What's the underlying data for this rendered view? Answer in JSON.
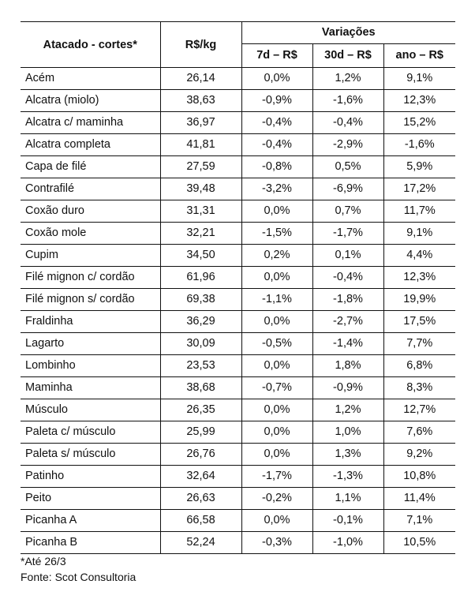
{
  "table": {
    "headers": {
      "name": "Atacado - cortes*",
      "price": "R$/kg",
      "group": "Variações",
      "d7": "7d – R$",
      "d30": "30d – R$",
      "ano": "ano – R$"
    },
    "rows": [
      {
        "name": "Acém",
        "price": "26,14",
        "d7": "0,0%",
        "d30": "1,2%",
        "ano": "9,1%"
      },
      {
        "name": "Alcatra (miolo)",
        "price": "38,63",
        "d7": "-0,9%",
        "d30": "-1,6%",
        "ano": "12,3%"
      },
      {
        "name": "Alcatra c/ maminha",
        "price": "36,97",
        "d7": "-0,4%",
        "d30": "-0,4%",
        "ano": "15,2%"
      },
      {
        "name": "Alcatra completa",
        "price": "41,81",
        "d7": "-0,4%",
        "d30": "-2,9%",
        "ano": "-1,6%"
      },
      {
        "name": "Capa de filé",
        "price": "27,59",
        "d7": "-0,8%",
        "d30": "0,5%",
        "ano": "5,9%"
      },
      {
        "name": "Contrafilé",
        "price": "39,48",
        "d7": "-3,2%",
        "d30": "-6,9%",
        "ano": "17,2%"
      },
      {
        "name": "Coxão duro",
        "price": "31,31",
        "d7": "0,0%",
        "d30": "0,7%",
        "ano": "11,7%"
      },
      {
        "name": "Coxão mole",
        "price": "32,21",
        "d7": "-1,5%",
        "d30": "-1,7%",
        "ano": "9,1%"
      },
      {
        "name": "Cupim",
        "price": "34,50",
        "d7": "0,2%",
        "d30": "0,1%",
        "ano": "4,4%"
      },
      {
        "name": "Filé mignon c/ cordão",
        "price": "61,96",
        "d7": "0,0%",
        "d30": "-0,4%",
        "ano": "12,3%"
      },
      {
        "name": "Filé mignon s/ cordão",
        "price": "69,38",
        "d7": "-1,1%",
        "d30": "-1,8%",
        "ano": "19,9%"
      },
      {
        "name": "Fraldinha",
        "price": "36,29",
        "d7": "0,0%",
        "d30": "-2,7%",
        "ano": "17,5%"
      },
      {
        "name": "Lagarto",
        "price": "30,09",
        "d7": "-0,5%",
        "d30": "-1,4%",
        "ano": "7,7%"
      },
      {
        "name": "Lombinho",
        "price": "23,53",
        "d7": "0,0%",
        "d30": "1,8%",
        "ano": "6,8%"
      },
      {
        "name": "Maminha",
        "price": "38,68",
        "d7": "-0,7%",
        "d30": "-0,9%",
        "ano": "8,3%"
      },
      {
        "name": "Músculo",
        "price": "26,35",
        "d7": "0,0%",
        "d30": "1,2%",
        "ano": "12,7%"
      },
      {
        "name": "Paleta c/ músculo",
        "price": "25,99",
        "d7": "0,0%",
        "d30": "1,0%",
        "ano": "7,6%"
      },
      {
        "name": "Paleta s/ músculo",
        "price": "26,76",
        "d7": "0,0%",
        "d30": "1,3%",
        "ano": "9,2%"
      },
      {
        "name": "Patinho",
        "price": "32,64",
        "d7": "-1,7%",
        "d30": "-1,3%",
        "ano": "10,8%"
      },
      {
        "name": "Peito",
        "price": "26,63",
        "d7": "-0,2%",
        "d30": "1,1%",
        "ano": "11,4%"
      },
      {
        "name": "Picanha A",
        "price": "66,58",
        "d7": "0,0%",
        "d30": "-0,1%",
        "ano": "7,1%"
      },
      {
        "name": "Picanha B",
        "price": "52,24",
        "d7": "-0,3%",
        "d30": "-1,0%",
        "ano": "10,5%"
      }
    ]
  },
  "notes": {
    "footnote": "*Até 26/3",
    "source": "Fonte: Scot Consultoria"
  }
}
